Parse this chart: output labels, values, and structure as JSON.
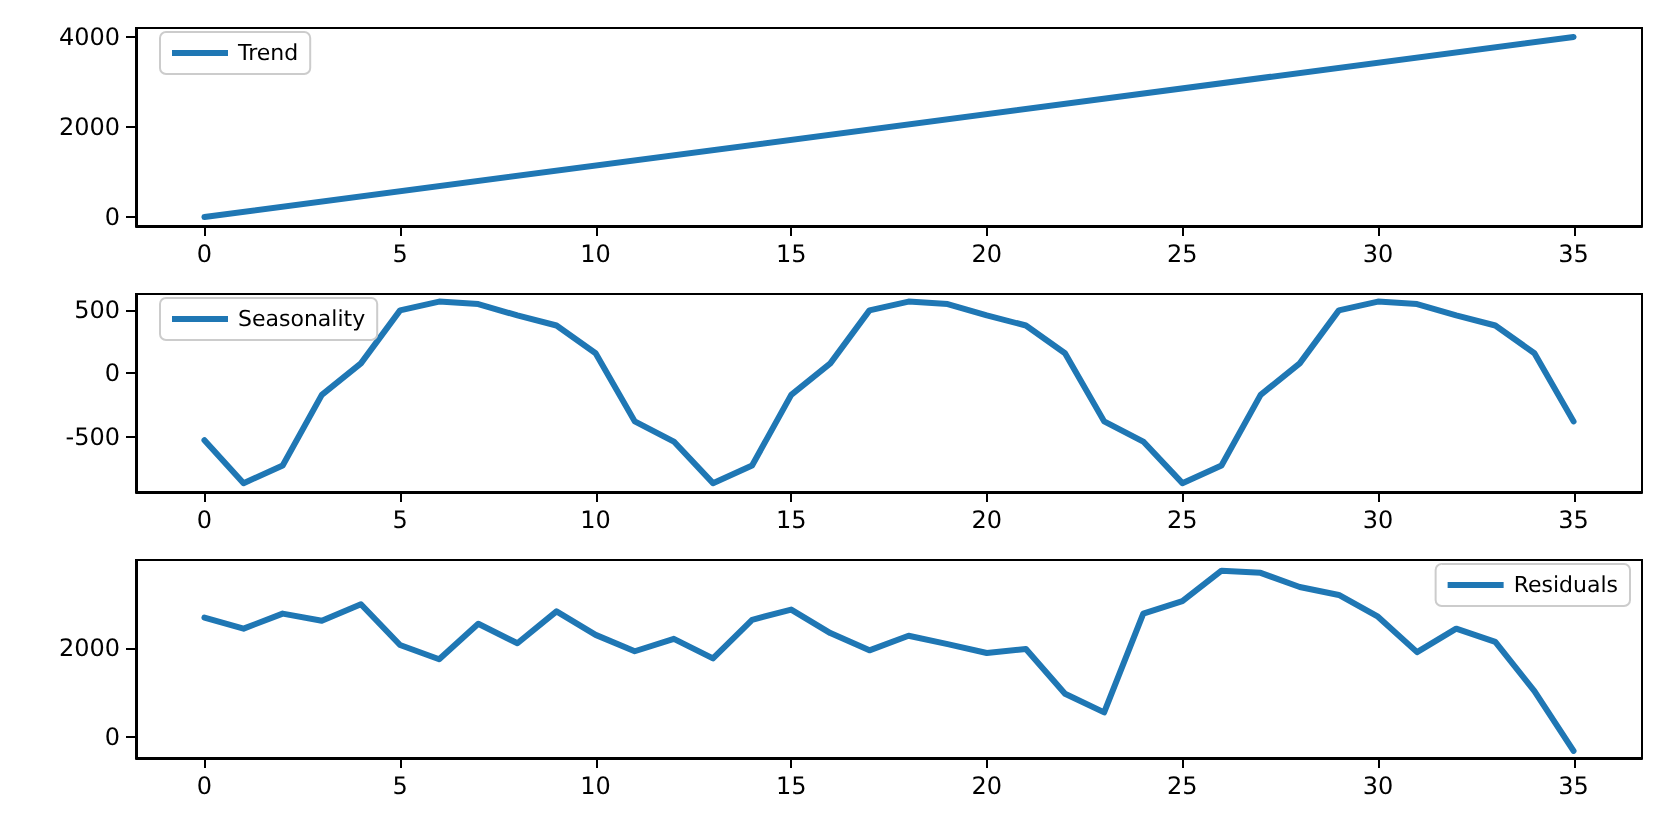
{
  "chart_data": [
    {
      "type": "line",
      "x": [
        0,
        35
      ],
      "series": [
        {
          "name": "Trend",
          "color": "#1f77b4",
          "values": [
            0,
            4000
          ]
        }
      ],
      "xlim": [
        -1.75,
        36.75
      ],
      "xticks": [
        0,
        5,
        10,
        15,
        20,
        25,
        30,
        35
      ],
      "ylim": [
        -200,
        4200
      ],
      "yticks": [
        0,
        2000,
        4000
      ],
      "legend": "top left",
      "grid": false,
      "marker": "none",
      "line_style": "solid"
    },
    {
      "type": "line",
      "x": [
        0,
        1,
        2,
        3,
        4,
        5,
        6,
        7,
        8,
        9,
        10,
        11,
        12,
        13,
        14,
        15,
        16,
        17,
        18,
        19,
        20,
        21,
        22,
        23,
        24,
        25,
        26,
        27,
        28,
        29,
        30,
        31,
        32,
        33,
        34,
        35
      ],
      "series": [
        {
          "name": "Seasonality",
          "color": "#1f77b4",
          "values": [
            -530,
            -870,
            -730,
            -170,
            80,
            500,
            570,
            550,
            460,
            380,
            160,
            -380,
            -540,
            -870,
            -730,
            -170,
            80,
            500,
            570,
            550,
            460,
            380,
            160,
            -380,
            -540,
            -870,
            -730,
            -170,
            80,
            500,
            570,
            550,
            460,
            380,
            160,
            -380
          ]
        }
      ],
      "xlim": [
        -1.75,
        36.75
      ],
      "xticks": [
        0,
        5,
        10,
        15,
        20,
        25,
        30,
        35
      ],
      "ylim": [
        -940,
        630
      ],
      "yticks": [
        -500,
        0,
        500
      ],
      "legend": "top left",
      "grid": false,
      "marker": "none",
      "line_style": "solid"
    },
    {
      "type": "line",
      "x": [
        0,
        1,
        2,
        3,
        4,
        5,
        6,
        7,
        8,
        9,
        10,
        11,
        12,
        13,
        14,
        15,
        16,
        17,
        18,
        19,
        20,
        21,
        22,
        23,
        24,
        25,
        26,
        27,
        28,
        29,
        30,
        31,
        32,
        33,
        34,
        35
      ],
      "series": [
        {
          "name": "Residuals",
          "color": "#1f77b4",
          "values": [
            2690,
            2440,
            2780,
            2620,
            2990,
            2070,
            1750,
            2550,
            2110,
            2830,
            2300,
            1930,
            2210,
            1770,
            2640,
            2870,
            2340,
            1950,
            2280,
            2090,
            1890,
            1980,
            970,
            550,
            2780,
            3060,
            3750,
            3700,
            3380,
            3200,
            2710,
            1910,
            2440,
            2140,
            1030,
            -320
          ]
        }
      ],
      "xlim": [
        -1.75,
        36.75
      ],
      "xticks": [
        0,
        5,
        10,
        15,
        20,
        25,
        30,
        35
      ],
      "ylim": [
        -480,
        3990
      ],
      "yticks": [
        0,
        2000
      ],
      "legend": "top right",
      "grid": false,
      "marker": "none",
      "line_style": "solid"
    }
  ]
}
